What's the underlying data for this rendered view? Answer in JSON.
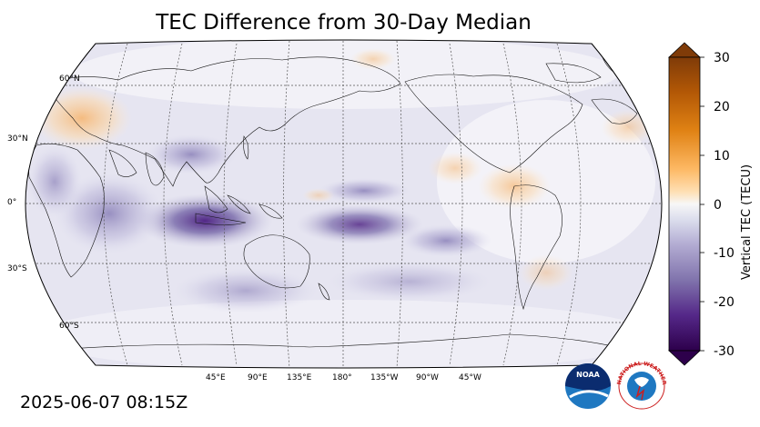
{
  "title": "TEC Difference from 30-Day Median",
  "timestamp": "2025-06-07 08:15Z",
  "map": {
    "projection": "Robinson",
    "central_longitude": 180,
    "graticule": true,
    "lat_labels": [
      "60°N",
      "30°N",
      "0°",
      "30°S",
      "60°S"
    ],
    "lon_labels": [
      "45°E",
      "90°E",
      "135°E",
      "180°",
      "135°W",
      "90°W",
      "45°W"
    ]
  },
  "colorbar": {
    "label": "Vertical TEC (TECU)",
    "ticks": [
      "30",
      "20",
      "10",
      "0",
      "-10",
      "-20",
      "-30"
    ],
    "min": -30,
    "max": 30,
    "colormap": "PuOr_r",
    "low_color": "#2d004b",
    "mid_color": "#f7f7f7",
    "high_color": "#7f3b08"
  },
  "logos": {
    "noaa": "NOAA",
    "nws": "NATIONAL WEATHER SERVICE"
  }
}
